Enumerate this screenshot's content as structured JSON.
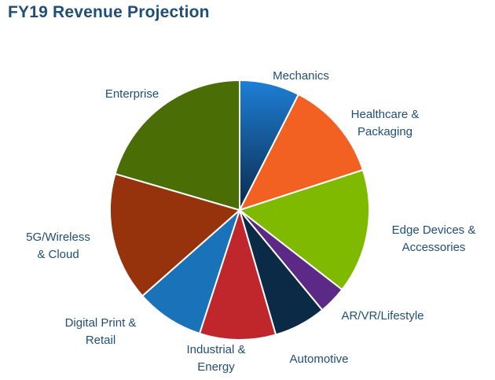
{
  "chart_data": {
    "type": "pie",
    "title": "FY19 Revenue Projection",
    "start_angle_deg": 0,
    "direction": "clockwise",
    "slices": [
      {
        "label": [
          "Mechanics"
        ],
        "value": 7.5,
        "color": "#1e7fd6",
        "color_dark": "#0a2a4a"
      },
      {
        "label": [
          "Healthcare &",
          "Packaging"
        ],
        "value": 12.5,
        "color": "#f26122"
      },
      {
        "label": [
          "Edge Devices &",
          "Accessories"
        ],
        "value": 15.5,
        "color": "#7fba00"
      },
      {
        "label": [
          "AR/VR/Lifestyle"
        ],
        "value": 3.5,
        "color": "#5c2a86"
      },
      {
        "label": [
          "Automotive"
        ],
        "value": 6.5,
        "color": "#0b2a45"
      },
      {
        "label": [
          "Industrial &",
          "Energy"
        ],
        "value": 9.5,
        "color": "#c0272d"
      },
      {
        "label": [
          "Digital Print &",
          "Retail"
        ],
        "value": 8.5,
        "color": "#1a73b8"
      },
      {
        "label": [
          "5G/Wireless",
          "& Cloud"
        ],
        "value": 16.0,
        "color": "#97330c"
      },
      {
        "label": [
          "Enterprise"
        ],
        "value": 20.5,
        "color": "#4a6e05"
      }
    ]
  }
}
